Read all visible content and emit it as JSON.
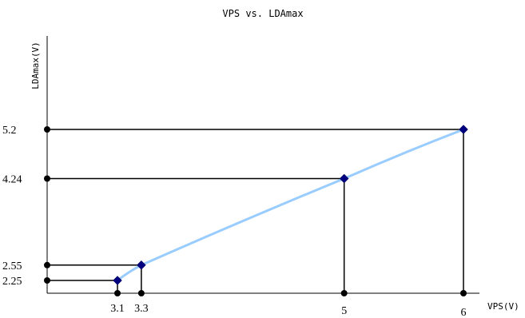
{
  "chart_data": {
    "type": "line",
    "title": "VPS vs. LDAmax",
    "xlabel": "VPS(V)",
    "ylabel": "LDAmax(V)",
    "series": [
      {
        "x": [
          3.1,
          3.3,
          5,
          6
        ],
        "y": [
          2.25,
          2.55,
          4.24,
          5.2
        ]
      }
    ],
    "x_ticks": [
      {
        "value": 3.1,
        "label": "3.1"
      },
      {
        "value": 3.3,
        "label": "3.3"
      },
      {
        "value": 5,
        "label": "5"
      },
      {
        "value": 6,
        "label": "6"
      }
    ],
    "y_ticks": [
      {
        "value": 2.25,
        "label": "2.25"
      },
      {
        "value": 2.55,
        "label": "2.55"
      },
      {
        "value": 4.24,
        "label": "4.24"
      },
      {
        "value": 5.2,
        "label": "5.2"
      }
    ],
    "grid": false,
    "line_color": "#99ccff",
    "marker_color": "#000080",
    "guide_color": "#000000"
  }
}
